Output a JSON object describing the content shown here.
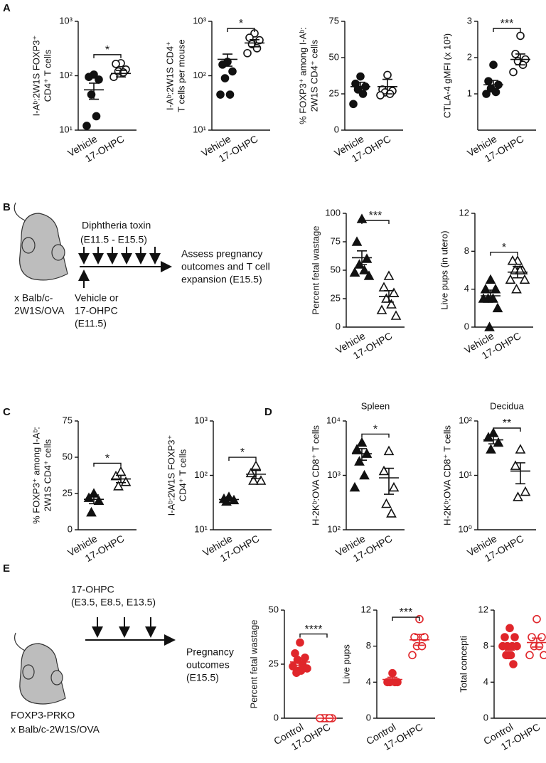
{
  "panel_labels": [
    "A",
    "B",
    "C",
    "D",
    "E"
  ],
  "schematic_b": {
    "texts": [
      "Diphtheria toxin",
      "(E11.5 - E15.5)",
      "Assess pregnancy",
      "outcomes and T cell",
      "expansion (E15.5)",
      "Vehicle or",
      "17-OHPC",
      "(E11.5)",
      "x Balb/c-",
      "2W1S/OVA"
    ]
  },
  "schematic_e": {
    "texts": [
      "17-OHPC",
      "(E3.5, E8.5, E13.5)",
      "Pregnancy",
      "outcomes",
      "(E15.5)",
      "FOXP3-PRKO",
      "x Balb/c-2W1S/OVA"
    ]
  },
  "chart_data": [
    {
      "type": "dotplot",
      "ylabel": [
        "I-Aᵇ:2W1S FOXP3⁺",
        "CD4⁺ T cells"
      ],
      "categories": [
        "Vehicle",
        "17-OHPC"
      ],
      "points": [
        [
          105,
          95,
          85,
          45,
          18,
          12
        ],
        [
          170,
          165,
          130,
          120,
          115,
          95
        ]
      ],
      "means": [
        55,
        110
      ],
      "sem": [
        18,
        15
      ],
      "markers": [
        "filled-circle",
        "open-circle"
      ],
      "color": "#111111",
      "log": true,
      "ylim": [
        10,
        1000
      ],
      "yticks": [
        {
          "value": 10,
          "label": "10¹"
        },
        {
          "value": 100,
          "label": "10²"
        },
        {
          "value": 1000,
          "label": "10³"
        }
      ],
      "significance": "*"
    },
    {
      "type": "dotplot",
      "ylabel": [
        "I-Aᵇ:2W1S CD4⁺",
        "T cells per mouse"
      ],
      "categories": [
        "Vehicle",
        "17-OHPC"
      ],
      "points": [
        [
          180,
          160,
          120,
          90,
          45,
          45
        ],
        [
          600,
          500,
          450,
          380,
          320,
          260
        ]
      ],
      "means": [
        200,
        400
      ],
      "sem": [
        50,
        60
      ],
      "markers": [
        "filled-circle",
        "open-circle"
      ],
      "color": "#111111",
      "log": true,
      "ylim": [
        10,
        1000
      ],
      "yticks": [
        {
          "value": 10,
          "label": "10¹"
        },
        {
          "value": 100,
          "label": "10²"
        },
        {
          "value": 1000,
          "label": "10³"
        }
      ],
      "significance": "*"
    },
    {
      "type": "dotplot",
      "ylabel": [
        "% FOXP3⁺ among I-Aᵇ:",
        "2W1S CD4⁺ cells"
      ],
      "categories": [
        "Vehicle",
        "17-OHPC"
      ],
      "points": [
        [
          37,
          32,
          30,
          28,
          25,
          18
        ],
        [
          38,
          28,
          27,
          26,
          25,
          24
        ]
      ],
      "means": [
        30,
        30
      ],
      "sem": [
        3,
        5
      ],
      "markers": [
        "filled-circle",
        "open-circle"
      ],
      "color": "#111111",
      "log": false,
      "ylim": [
        0,
        75
      ],
      "yticks": [
        0,
        25,
        50,
        75
      ]
    },
    {
      "type": "dotplot",
      "ylabel": [
        "CTLA-4 gMFI (x 10³)"
      ],
      "categories": [
        "Vehicle",
        "17-OHPC"
      ],
      "points": [
        [
          1.8,
          1.35,
          1.25,
          1.15,
          1.05,
          1.0
        ],
        [
          2.6,
          2.1,
          1.95,
          1.9,
          1.8,
          1.6
        ]
      ],
      "means": [
        1.25,
        1.95
      ],
      "sem": [
        0.12,
        0.15
      ],
      "markers": [
        "filled-circle",
        "open-circle"
      ],
      "color": "#111111",
      "log": false,
      "ylim": [
        0,
        3
      ],
      "yticks": [
        1,
        2,
        3
      ],
      "significance": "***"
    },
    {
      "type": "dotplot",
      "ylabel": [
        "Percent fetal wastage"
      ],
      "categories": [
        "Vehicle",
        "17-OHPC"
      ],
      "points": [
        [
          95,
          75,
          60,
          55,
          50,
          48,
          45
        ],
        [
          45,
          35,
          30,
          25,
          20,
          15,
          10
        ]
      ],
      "means": [
        61,
        27
      ],
      "sem": [
        6,
        5
      ],
      "markers": [
        "filled-triangle",
        "open-triangle"
      ],
      "color": "#111111",
      "log": false,
      "ylim": [
        0,
        100
      ],
      "yticks": [
        0,
        25,
        50,
        75,
        100
      ],
      "significance": "***"
    },
    {
      "type": "dotplot",
      "ylabel": [
        "Live pups (in utero)"
      ],
      "categories": [
        "Vehicle",
        "17-OHPC"
      ],
      "points": [
        [
          5,
          4,
          4,
          3,
          3,
          3,
          2,
          0
        ],
        [
          7,
          7,
          6,
          6,
          6,
          5,
          5,
          4
        ]
      ],
      "means": [
        3.3,
        5.8
      ],
      "sem": [
        0.6,
        0.6
      ],
      "markers": [
        "filled-triangle",
        "open-triangle"
      ],
      "color": "#111111",
      "log": false,
      "ylim": [
        0,
        12
      ],
      "yticks": [
        0,
        4,
        8,
        12
      ],
      "significance": "*"
    },
    {
      "type": "dotplot",
      "ylabel": [
        "% FOXP3⁺ among I-Aᵇ:",
        "2W1S CD4⁺ cells"
      ],
      "categories": [
        "Vehicle",
        "17-OHPC"
      ],
      "points": [
        [
          25,
          22,
          20,
          12
        ],
        [
          40,
          37,
          33,
          30
        ]
      ],
      "means": [
        21,
        35
      ],
      "sem": [
        3,
        2.5
      ],
      "markers": [
        "filled-triangle",
        "open-triangle"
      ],
      "color": "#111111",
      "log": false,
      "ylim": [
        0,
        75
      ],
      "yticks": [
        0,
        25,
        50,
        75
      ],
      "significance": "*"
    },
    {
      "type": "dotplot",
      "ylabel": [
        "I-Aᵇ:2W1S FOXP3⁺",
        "CD4⁺ T cells"
      ],
      "categories": [
        "Vehicle",
        "17-OHPC"
      ],
      "points": [
        [
          40,
          37,
          35,
          33
        ],
        [
          150,
          110,
          80,
          80
        ]
      ],
      "means": [
        36,
        105
      ],
      "sem": [
        2,
        18
      ],
      "markers": [
        "filled-triangle",
        "open-triangle"
      ],
      "color": "#111111",
      "log": true,
      "ylim": [
        10,
        1000
      ],
      "yticks": [
        {
          "value": 10,
          "label": "10¹"
        },
        {
          "value": 100,
          "label": "10²"
        },
        {
          "value": 1000,
          "label": "10³"
        }
      ],
      "significance": "*"
    },
    {
      "type": "dotplot",
      "title": "Spleen",
      "ylabel": [
        "H-2Kᵇ:OVA CD8⁺ T cells"
      ],
      "categories": [
        "Vehicle",
        "17-OHPC"
      ],
      "points": [
        [
          4000,
          3000,
          2500,
          1800,
          1000,
          600
        ],
        [
          2800,
          1200,
          600,
          300,
          200
        ]
      ],
      "means": [
        2500,
        900
      ],
      "sem": [
        600,
        450
      ],
      "markers": [
        "filled-triangle",
        "open-triangle"
      ],
      "color": "#111111",
      "log": true,
      "ylim": [
        100,
        10000
      ],
      "yticks": [
        {
          "value": 100,
          "label": "10²"
        },
        {
          "value": 1000,
          "label": "10³"
        },
        {
          "value": 10000,
          "label": "10⁴"
        }
      ],
      "significance": "*"
    },
    {
      "type": "dotplot",
      "title": "Decidua",
      "ylabel": [
        "H-2Kᵇ:OVA CD8⁺ T cells"
      ],
      "categories": [
        "Vehicle",
        "17-OHPC"
      ],
      "points": [
        [
          60,
          50,
          40,
          30
        ],
        [
          30,
          15,
          5,
          4
        ]
      ],
      "means": [
        45,
        12
      ],
      "sem": [
        7,
        5
      ],
      "markers": [
        "filled-triangle",
        "open-triangle"
      ],
      "color": "#111111",
      "log": true,
      "ylim": [
        1,
        100
      ],
      "yticks": [
        {
          "value": 1,
          "label": "10⁰"
        },
        {
          "value": 10,
          "label": "10¹"
        },
        {
          "value": 100,
          "label": "10²"
        }
      ],
      "significance": "**"
    },
    {
      "type": "dotplot",
      "ylabel": [
        "Percent fetal wastage"
      ],
      "categories": [
        "Control",
        "17-OHPC"
      ],
      "points": [
        [
          35,
          30,
          28,
          27,
          25,
          24,
          23,
          22,
          22,
          21
        ],
        [
          0,
          0,
          0,
          0,
          0,
          0
        ]
      ],
      "means": [
        26,
        0
      ],
      "sem": [
        1.5,
        0
      ],
      "markers": [
        "filled-circle",
        "open-circle"
      ],
      "color": "#e0262b",
      "log": false,
      "ylim": [
        0,
        50
      ],
      "yticks": [
        0,
        25,
        50
      ],
      "significance": "****"
    },
    {
      "type": "dotplot",
      "ylabel": [
        "Live pups"
      ],
      "categories": [
        "Control",
        "17-OHPC"
      ],
      "points": [
        [
          5,
          4,
          4,
          4,
          4
        ],
        [
          11,
          9,
          9,
          8,
          8,
          7
        ]
      ],
      "means": [
        4.3,
        8.7
      ],
      "sem": [
        0.25,
        0.6
      ],
      "markers": [
        "filled-circle",
        "open-circle"
      ],
      "color": "#e0262b",
      "log": false,
      "ylim": [
        0,
        12
      ],
      "yticks": [
        0,
        4,
        8,
        12
      ],
      "significance": "***"
    },
    {
      "type": "dotplot",
      "ylabel": [
        "Total concepti"
      ],
      "categories": [
        "Control",
        "17-OHPC"
      ],
      "points": [
        [
          10,
          9,
          9,
          8,
          8,
          8,
          8,
          7,
          7,
          7,
          6
        ],
        [
          11,
          9,
          9,
          8,
          8,
          7,
          7
        ]
      ],
      "means": [
        7.9,
        8.4
      ],
      "sem": [
        0.35,
        0.5
      ],
      "markers": [
        "filled-circle",
        "open-circle"
      ],
      "color": "#e0262b",
      "log": false,
      "ylim": [
        0,
        12
      ],
      "yticks": [
        0,
        4,
        8,
        12
      ]
    }
  ]
}
